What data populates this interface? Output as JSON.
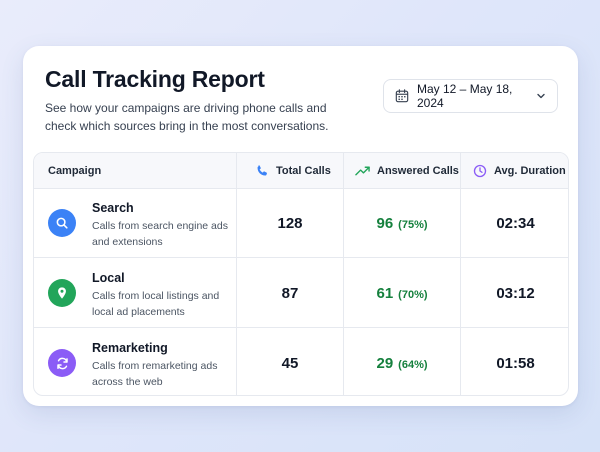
{
  "header": {
    "title": "Call Tracking Report",
    "subtitle": "See how your campaigns are driving phone calls and check which sources bring in the most conversations.",
    "date_range": "May 12 – May 18, 2024"
  },
  "table": {
    "columns": {
      "campaign": "Campaign",
      "total": "Total Calls",
      "answered": "Answered Calls",
      "duration": "Avg. Duration"
    },
    "rows": [
      {
        "name": "Search",
        "description": "Calls from search engine ads and extensions",
        "total": "128",
        "answered": "96",
        "answered_pct": "(75%)",
        "duration": "02:34",
        "icon": "search-icon",
        "color": "#3b82f6"
      },
      {
        "name": "Local",
        "description": "Calls from local listings and local ad placements",
        "total": "87",
        "answered": "61",
        "answered_pct": "(70%)",
        "duration": "03:12",
        "icon": "location-pin-icon",
        "color": "#22a55a"
      },
      {
        "name": "Remarketing",
        "description": "Calls from remarketing ads across the web",
        "total": "45",
        "answered": "29",
        "answered_pct": "(64%)",
        "duration": "01:58",
        "icon": "refresh-icon",
        "color": "#8b5cf6"
      }
    ]
  },
  "colors": {
    "accent_blue": "#3b82f6",
    "accent_green": "#22a55a",
    "accent_purple": "#8b5cf6",
    "answered_text": "#15803d"
  }
}
